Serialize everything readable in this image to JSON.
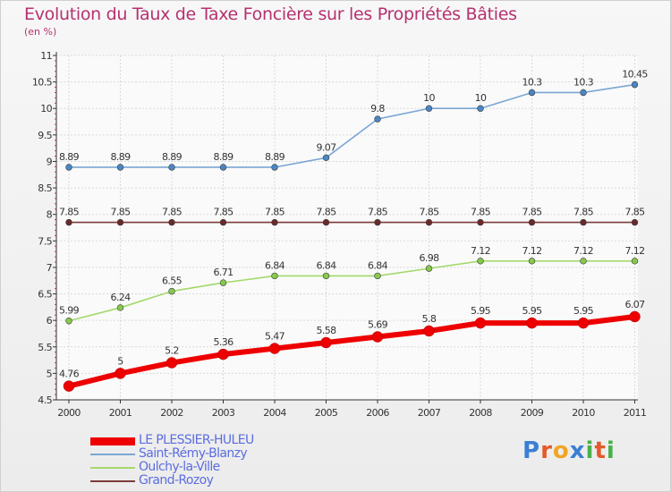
{
  "title": "Evolution du Taux de Taxe Foncière sur les Propriétés Bâties",
  "subtitle": "(en %)",
  "logo": {
    "text": "Proxiti",
    "letters": [
      {
        "ch": "P",
        "color": "#3a7fd5"
      },
      {
        "ch": "r",
        "color": "#e35a2b"
      },
      {
        "ch": "o",
        "color": "#f0a524"
      },
      {
        "ch": "x",
        "color": "#3a7fd5"
      },
      {
        "ch": "i",
        "color": "#49b04a"
      },
      {
        "ch": "t",
        "color": "#e35a2b"
      },
      {
        "ch": "i",
        "color": "#49b04a"
      }
    ]
  },
  "chart_data": {
    "type": "line",
    "title": "Evolution du Taux de Taxe Foncière sur les Propriétés Bâties",
    "ylabel": "(en %)",
    "xlabel": "",
    "categories": [
      "2000",
      "2001",
      "2002",
      "2003",
      "2004",
      "2005",
      "2006",
      "2007",
      "2008",
      "2009",
      "2010",
      "2011"
    ],
    "ylim": [
      4.5,
      11
    ],
    "yticks": [
      4.5,
      5,
      5.5,
      6,
      6.5,
      7,
      7.5,
      8,
      8.5,
      9,
      9.5,
      10,
      10.5,
      11
    ],
    "ytick_labels": [
      "4.5",
      "5",
      "5.5",
      "6",
      "6.5",
      "7",
      "7.5",
      "8",
      "8.5",
      "9",
      "9.5",
      "10",
      "10.5",
      "11"
    ],
    "grid": true,
    "legend_position": "bottom-left",
    "series": [
      {
        "name": "Saint-Rémy-Blanzy",
        "color": "#7ba6d4",
        "marker_color": "#4a86c5",
        "values": [
          8.89,
          8.89,
          8.89,
          8.89,
          8.89,
          9.07,
          9.8,
          10,
          10,
          10.3,
          10.3,
          10.45
        ],
        "labels": [
          "8.89",
          "8.89",
          "8.89",
          "8.89",
          "8.89",
          "9.07",
          "9.8",
          "10",
          "10",
          "10.3",
          "10.3",
          "10.45"
        ]
      },
      {
        "name": "Grand-Rozoy",
        "color": "#7d3b3b",
        "marker_color": "#6b2a2a",
        "values": [
          7.85,
          7.85,
          7.85,
          7.85,
          7.85,
          7.85,
          7.85,
          7.85,
          7.85,
          7.85,
          7.85,
          7.85
        ],
        "labels": [
          "7.85",
          "7.85",
          "7.85",
          "7.85",
          "7.85",
          "7.85",
          "7.85",
          "7.85",
          "7.85",
          "7.85",
          "7.85",
          "7.85"
        ]
      },
      {
        "name": "Oulchy-la-Ville",
        "color": "#a3d96b",
        "marker_color": "#86c94b",
        "values": [
          5.99,
          6.24,
          6.55,
          6.71,
          6.84,
          6.84,
          6.84,
          6.98,
          7.12,
          7.12,
          7.12,
          7.12
        ],
        "labels": [
          "5.99",
          "6.24",
          "6.55",
          "6.71",
          "6.84",
          "6.84",
          "6.84",
          "6.98",
          "7.12",
          "7.12",
          "7.12",
          "7.12"
        ]
      },
      {
        "name": "LE PLESSIER-HULEU",
        "color": "#ee0000",
        "marker_color": "#ee0000",
        "values": [
          4.76,
          5,
          5.2,
          5.36,
          5.47,
          5.58,
          5.69,
          5.8,
          5.95,
          5.95,
          5.95,
          6.07
        ],
        "labels": [
          "4.76",
          "5",
          "5.2",
          "5.36",
          "5.47",
          "5.58",
          "5.69",
          "5.8",
          "5.95",
          "5.95",
          "5.95",
          "6.07"
        ]
      }
    ],
    "legend_order": [
      "LE PLESSIER-HULEU",
      "Saint-Rémy-Blanzy",
      "Oulchy-la-Ville",
      "Grand-Rozoy"
    ]
  }
}
